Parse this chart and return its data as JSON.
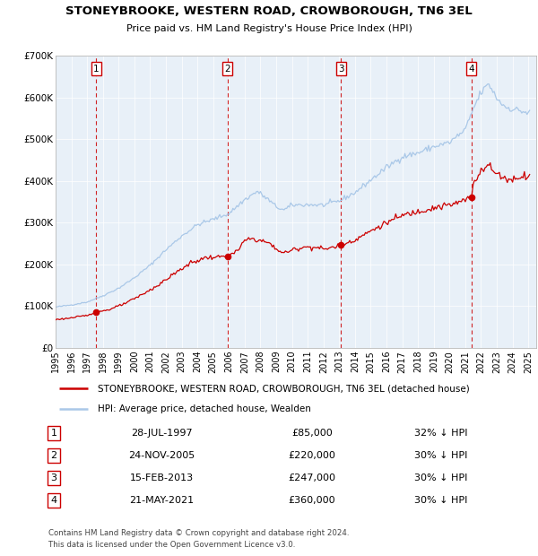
{
  "title": "STONEYBROOKE, WESTERN ROAD, CROWBOROUGH, TN6 3EL",
  "subtitle": "Price paid vs. HM Land Registry's House Price Index (HPI)",
  "legend_line1": "STONEYBROOKE, WESTERN ROAD, CROWBOROUGH, TN6 3EL (detached house)",
  "legend_line2": "HPI: Average price, detached house, Wealden",
  "footer1": "Contains HM Land Registry data © Crown copyright and database right 2024.",
  "footer2": "This data is licensed under the Open Government Licence v3.0.",
  "hpi_color": "#aac8e8",
  "price_color": "#cc0000",
  "bg_color": "#e8f0f8",
  "sale_points": [
    {
      "label": "1",
      "date_num": 1997.57,
      "price": 85000,
      "text": "28-JUL-1997",
      "price_text": "£85,000",
      "hpi_text": "32% ↓ HPI"
    },
    {
      "label": "2",
      "date_num": 2005.9,
      "price": 220000,
      "text": "24-NOV-2005",
      "price_text": "£220,000",
      "hpi_text": "30% ↓ HPI"
    },
    {
      "label": "3",
      "date_num": 2013.12,
      "price": 247000,
      "text": "15-FEB-2013",
      "price_text": "£247,000",
      "hpi_text": "30% ↓ HPI"
    },
    {
      "label": "4",
      "date_num": 2021.38,
      "price": 360000,
      "text": "21-MAY-2021",
      "price_text": "£360,000",
      "hpi_text": "30% ↓ HPI"
    }
  ],
  "ylim": [
    0,
    700000
  ],
  "yticks": [
    0,
    100000,
    200000,
    300000,
    400000,
    500000,
    600000,
    700000
  ],
  "ytick_labels": [
    "£0",
    "£100K",
    "£200K",
    "£300K",
    "£400K",
    "£500K",
    "£600K",
    "£700K"
  ],
  "xlim_start": 1995.0,
  "xlim_end": 2025.5,
  "hpi_milestones": {
    "1995.0": 98000,
    "1996.0": 103000,
    "1997.0": 110000,
    "1998.0": 125000,
    "1999.0": 143000,
    "2000.0": 168000,
    "2001.0": 198000,
    "2002.0": 235000,
    "2003.0": 268000,
    "2004.0": 295000,
    "2005.0": 308000,
    "2006.0": 322000,
    "2007.0": 355000,
    "2007.8": 375000,
    "2008.5": 355000,
    "2009.0": 338000,
    "2009.5": 330000,
    "2010.0": 342000,
    "2011.0": 343000,
    "2012.0": 342000,
    "2013.0": 352000,
    "2014.0": 372000,
    "2015.0": 402000,
    "2016.0": 432000,
    "2017.0": 458000,
    "2018.0": 467000,
    "2019.0": 482000,
    "2020.0": 492000,
    "2021.0": 522000,
    "2021.5": 572000,
    "2022.0": 612000,
    "2022.5": 632000,
    "2023.0": 598000,
    "2023.5": 578000,
    "2024.0": 572000,
    "2024.5": 568000,
    "2025.0": 562000
  },
  "price_milestones": {
    "1995.0": 68000,
    "1996.0": 72000,
    "1997.0": 78000,
    "1997.57": 85000,
    "1998.5": 93000,
    "1999.5": 108000,
    "2000.5": 128000,
    "2001.5": 150000,
    "2002.5": 177000,
    "2003.5": 202000,
    "2004.5": 216000,
    "2005.5": 218000,
    "2005.9": 220000,
    "2006.5": 230000,
    "2007.0": 257000,
    "2007.5": 262000,
    "2008.0": 257000,
    "2008.5": 252000,
    "2009.0": 237000,
    "2009.5": 227000,
    "2010.0": 234000,
    "2010.5": 240000,
    "2011.0": 242000,
    "2011.5": 241000,
    "2012.0": 237000,
    "2012.5": 240000,
    "2013.12": 247000,
    "2014.0": 259000,
    "2015.0": 280000,
    "2016.0": 300000,
    "2017.0": 317000,
    "2018.0": 327000,
    "2019.0": 336000,
    "2020.0": 342000,
    "2020.5": 347000,
    "2021.38": 360000,
    "2021.5": 392000,
    "2022.0": 428000,
    "2022.5": 438000,
    "2022.8": 422000,
    "2023.0": 417000,
    "2023.5": 407000,
    "2024.0": 402000,
    "2024.5": 412000,
    "2025.0": 412000
  }
}
